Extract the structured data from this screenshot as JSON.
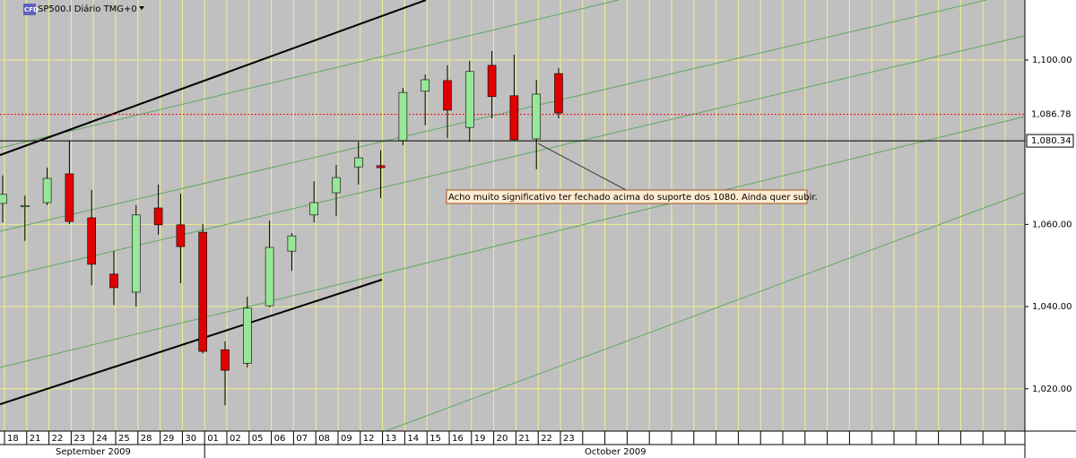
{
  "chart_data": {
    "type": "candlestick",
    "title": "SP500.I Diário TMG+0",
    "icon_label": "CFD",
    "categories": [
      "18",
      "21",
      "22",
      "23",
      "24",
      "25",
      "28",
      "29",
      "30",
      "01",
      "02",
      "05",
      "06",
      "07",
      "08",
      "09",
      "12",
      "13",
      "14",
      "15",
      "16",
      "19",
      "20",
      "21",
      "22",
      "23"
    ],
    "months": [
      "September 2009",
      "October 2009"
    ],
    "open": [
      1065.1,
      1064.3,
      1065.3,
      1072.3,
      1061.6,
      1047.9,
      1043.5,
      1064.0,
      1059.9,
      1058.1,
      1029.5,
      1026.2,
      1040.2,
      1053.5,
      1062.3,
      1067.7,
      1074.0,
      1074.3,
      1080.4,
      1092.4,
      1095.0,
      1083.6,
      1098.7,
      1091.3,
      1080.8,
      1096.7
    ],
    "high": [
      1071.9,
      1067.0,
      1073.8,
      1080.4,
      1068.4,
      1053.5,
      1064.7,
      1069.7,
      1067.5,
      1060.1,
      1031.5,
      1042.4,
      1060.9,
      1057.9,
      1070.5,
      1074.5,
      1080.1,
      1078.0,
      1093.2,
      1096.5,
      1098.7,
      1099.8,
      1102.2,
      1101.3,
      1095.2,
      1098.0
    ],
    "low": [
      1060.5,
      1056.0,
      1064.7,
      1060.1,
      1045.2,
      1040.4,
      1040.0,
      1057.5,
      1045.7,
      1028.6,
      1016.0,
      1025.2,
      1039.8,
      1048.7,
      1060.5,
      1062.0,
      1069.7,
      1066.4,
      1079.3,
      1084.1,
      1081.0,
      1080.1,
      1085.8,
      1080.4,
      1073.4,
      1085.8
    ],
    "close": [
      1067.3,
      1064.6,
      1071.2,
      1060.7,
      1050.3,
      1044.6,
      1062.3,
      1059.9,
      1054.6,
      1029.1,
      1024.5,
      1039.6,
      1054.4,
      1057.2,
      1065.3,
      1071.4,
      1076.2,
      1073.8,
      1092.1,
      1095.2,
      1087.8,
      1097.2,
      1091.1,
      1080.6,
      1091.7,
      1087.1
    ],
    "up_color": "#98e698",
    "down_color": "#e00000",
    "ylim": [
      1009.7,
      1114.6
    ],
    "yticks": [
      {
        "value": 1020,
        "label": "1,020.00"
      },
      {
        "value": 1040,
        "label": "1,040.00"
      },
      {
        "value": 1060,
        "label": "1,060.00"
      },
      {
        "value": 1100,
        "label": "1,100.00"
      }
    ],
    "grid": true,
    "grid_color": "#f0f08c",
    "price_lines": [
      {
        "value": 1086.78,
        "label": "1,086.78",
        "color": "#ff0000",
        "style": "dotted"
      },
      {
        "value": 1080.34,
        "label": "1,080.34",
        "color": "#000000",
        "style": "solid"
      }
    ],
    "annotation": "Acho muito significativo ter fechado acima do suporte dos 1080. Ainda quer subir."
  }
}
